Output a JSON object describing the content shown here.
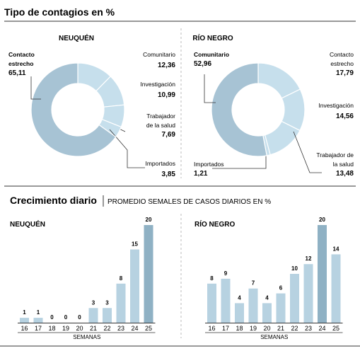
{
  "section1": {
    "title": "Tipo de contagios en %"
  },
  "section2": {
    "title": "Crecimiento diario",
    "subtitle": "PROMEDIO SEMALES DE CASOS DIARIOS EN %"
  },
  "colors": {
    "donut_large": "#a7c3d4",
    "donut_small": "#c6dfec",
    "bar_normal": "#b7d2e1",
    "bar_peak": "#9dbdcf",
    "bar_highlight": "#8fb1c4",
    "rule": "#333333",
    "background": "#ffffff"
  },
  "chart_data": [
    {
      "type": "pie",
      "style": "donut",
      "title": "NEUQUÉN",
      "slices": [
        {
          "label": "Comunitario",
          "value": 12.36,
          "display": "12,36",
          "label_lines": [
            "Comunitario"
          ]
        },
        {
          "label": "Investigación",
          "value": 10.99,
          "display": "10,99",
          "label_lines": [
            "Investigación"
          ]
        },
        {
          "label": "Trabajador de la salud",
          "value": 7.69,
          "display": "7,69",
          "label_lines": [
            "Trabajador",
            "de la salud"
          ]
        },
        {
          "label": "Importados",
          "value": 3.85,
          "display": "3,85",
          "label_lines": [
            "Importados"
          ]
        },
        {
          "label": "Contacto estrecho",
          "value": 65.11,
          "display": "65,11",
          "label_lines": [
            "Contacto",
            "estrecho"
          ]
        }
      ]
    },
    {
      "type": "pie",
      "style": "donut",
      "title": "RÍO NEGRO",
      "slices": [
        {
          "label": "Contacto estrecho",
          "value": 17.79,
          "display": "17,79",
          "label_lines": [
            "Contacto",
            "estrecho"
          ]
        },
        {
          "label": "Investigación",
          "value": 14.56,
          "display": "14,56",
          "label_lines": [
            "Investigación"
          ]
        },
        {
          "label": "Trabajador de la salud",
          "value": 13.48,
          "display": "13,48",
          "label_lines": [
            "Trabajador de",
            "la salud"
          ]
        },
        {
          "label": "Importados",
          "value": 1.21,
          "display": "1,21",
          "label_lines": [
            "Importados"
          ]
        },
        {
          "label": "Comunitario",
          "value": 52.96,
          "display": "52,96",
          "label_lines": [
            "Comunitario"
          ]
        }
      ]
    },
    {
      "type": "bar",
      "title": "NEUQUÉN",
      "xlabel": "SEMANAS",
      "categories": [
        "16",
        "17",
        "18",
        "19",
        "20",
        "21",
        "22",
        "23",
        "24",
        "25"
      ],
      "values": [
        1,
        1,
        0,
        0,
        0,
        3,
        3,
        8,
        15,
        20
      ],
      "ylim": [
        0,
        20
      ]
    },
    {
      "type": "bar",
      "title": "RÍO NEGRO",
      "xlabel": "SEMANAS",
      "categories": [
        "16",
        "17",
        "18",
        "19",
        "20",
        "21",
        "22",
        "23",
        "24",
        "25"
      ],
      "values": [
        8,
        9,
        4,
        7,
        4,
        6,
        10,
        12,
        20,
        14
      ],
      "ylim": [
        0,
        20
      ]
    }
  ]
}
